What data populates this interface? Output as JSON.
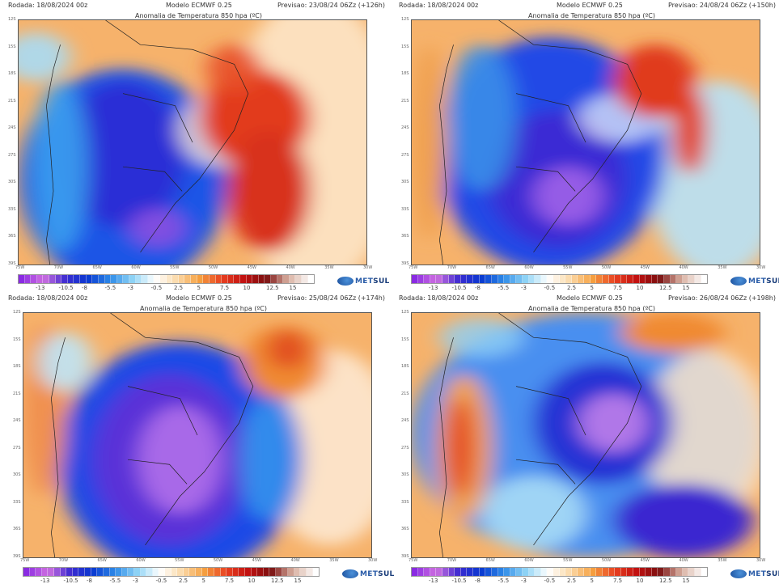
{
  "panels": [
    {
      "rodada": "Rodada: 18/08/2024 00z",
      "modelo": "Modelo ECMWF 0.25",
      "previsao": "Previsao: 23/08/24 06Zz (+126h)",
      "title": "Anomalia de Temperatura 850 hpa (ºC)"
    },
    {
      "rodada": "Rodada: 18/08/2024 00z",
      "modelo": "Modelo ECMWF 0.25",
      "previsao": "Previsao: 24/08/24 06Zz (+150h)",
      "title": "Anomalia de Temperatura 850 hpa (ºC)"
    },
    {
      "rodada": "Rodada: 18/08/2024 00z",
      "modelo": "Modelo ECMWF 0.25",
      "previsao": "Previsao: 25/08/24 06Zz (+174h)",
      "title": "Anomalia de Temperatura 850 hpa (ºC)"
    },
    {
      "rodada": "Rodada: 18/08/2024 00z",
      "modelo": "Modelo ECMWF 0.25",
      "previsao": "Previsao: 26/08/24 06Zz (+198h)",
      "title": "Anomalia de Temperatura 850 hpa (ºC)"
    }
  ],
  "lat_ticks": [
    "12S",
    "15S",
    "18S",
    "21S",
    "24S",
    "27S",
    "30S",
    "33S",
    "36S",
    "39S"
  ],
  "lon_ticks": [
    "75W",
    "70W",
    "65W",
    "60W",
    "55W",
    "50W",
    "45W",
    "40W",
    "35W",
    "30W"
  ],
  "colorbar": {
    "labels": [
      "-13",
      "-10.5",
      "-8",
      "-5.5",
      "-3",
      "-0.5",
      "2.5",
      "5",
      "7.5",
      "10",
      "12.5",
      "15"
    ],
    "stops": [
      "#8a2be2",
      "#d070e0",
      "#3b2bd0",
      "#0a3ad0",
      "#2d8be8",
      "#8fd4f5",
      "#ffffff",
      "#fbd9a8",
      "#f5a040",
      "#e84020",
      "#c01010",
      "#7a1010",
      "#d8b0a0",
      "#ffffff"
    ]
  },
  "logo": {
    "text_a": "MET",
    "text_b": "SUL"
  },
  "colors": {
    "warm": "#f6b26b",
    "hot": "#d9261c",
    "cold": "#1e3ee0",
    "very_cold": "#9a48e8",
    "neutral": "#ffffff"
  }
}
